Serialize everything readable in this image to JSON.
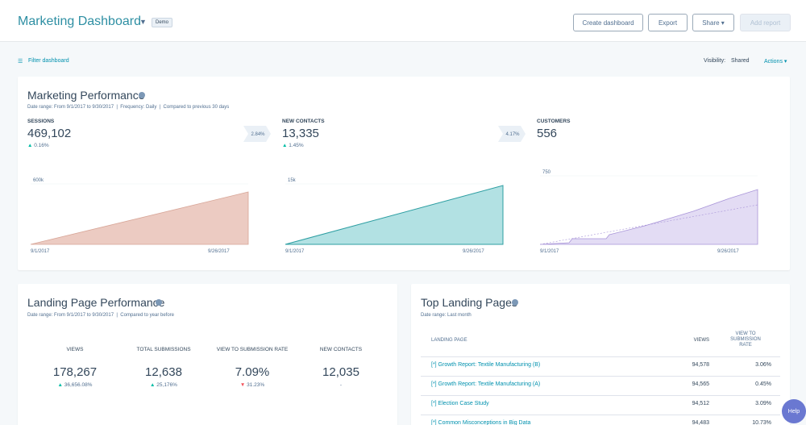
{
  "header": {
    "title": "Marketing Dashboard",
    "badge": "Demo",
    "buttons": [
      "Create dashboard",
      "Export",
      "Share ▾",
      "Add report"
    ]
  },
  "toolbar": {
    "filter": "Filter dashboard",
    "visibility_label": "Visibility:",
    "visibility": "Shared",
    "actions": "Actions ▾"
  },
  "performance": {
    "title": "Marketing Performance",
    "subtitle": "Date range: From 9/1/2017 to 9/30/2017  |  Frequency: Daily  |  Compared to previous 30 days",
    "metrics": [
      {
        "label": "SESSIONS",
        "value": "469,102",
        "change": "0.16%"
      },
      {
        "label": "NEW CONTACTS",
        "value": "13,335",
        "change": "1.45%"
      },
      {
        "label": "CUSTOMERS",
        "value": "556"
      }
    ],
    "conversions": [
      "2.84%",
      "4.17%"
    ],
    "charts": [
      {
        "ymax": "600k",
        "x_start": "9/1/2017",
        "x_end": "9/26/2017"
      },
      {
        "ymax": "15k",
        "x_start": "9/1/2017",
        "x_end": "9/26/2017"
      },
      {
        "ymax": "750",
        "x_start": "9/1/2017",
        "x_end": "9/26/2017"
      }
    ]
  },
  "landing": {
    "title": "Landing Page Performance",
    "subtitle": "Date range: From 9/1/2017 to 9/30/2017  |  Compared to year before",
    "metrics": [
      {
        "label": "VIEWS",
        "value": "178,267",
        "change": "36,656.08%"
      },
      {
        "label": "TOTAL SUBMISSIONS",
        "value": "12,638",
        "change": "25,176%"
      },
      {
        "label": "VIEW TO SUBMISSION RATE",
        "value": "7.09%",
        "change": "31.23%"
      },
      {
        "label": "NEW CONTACTS",
        "value": "12,035",
        "change": "-"
      }
    ]
  },
  "top": {
    "title": "Top Landing Pages",
    "subtitle": "Date range: Last month",
    "columns": [
      "LANDING PAGE",
      "VIEWS",
      "VIEW TO SUBMISSION RATE"
    ],
    "rows": [
      [
        "[*] Growth Report: Textile Manufacturing (B)",
        "94,578",
        "3.06%"
      ],
      [
        "[*] Growth Report: Textile Manufacturing (A)",
        "94,565",
        "0.45%"
      ],
      [
        "[*] Election Case Study",
        "94,512",
        "3.09%"
      ],
      [
        "[*] Common Misconceptions in Big Data",
        "94,483",
        "10.73%"
      ]
    ]
  },
  "help": "Help"
}
